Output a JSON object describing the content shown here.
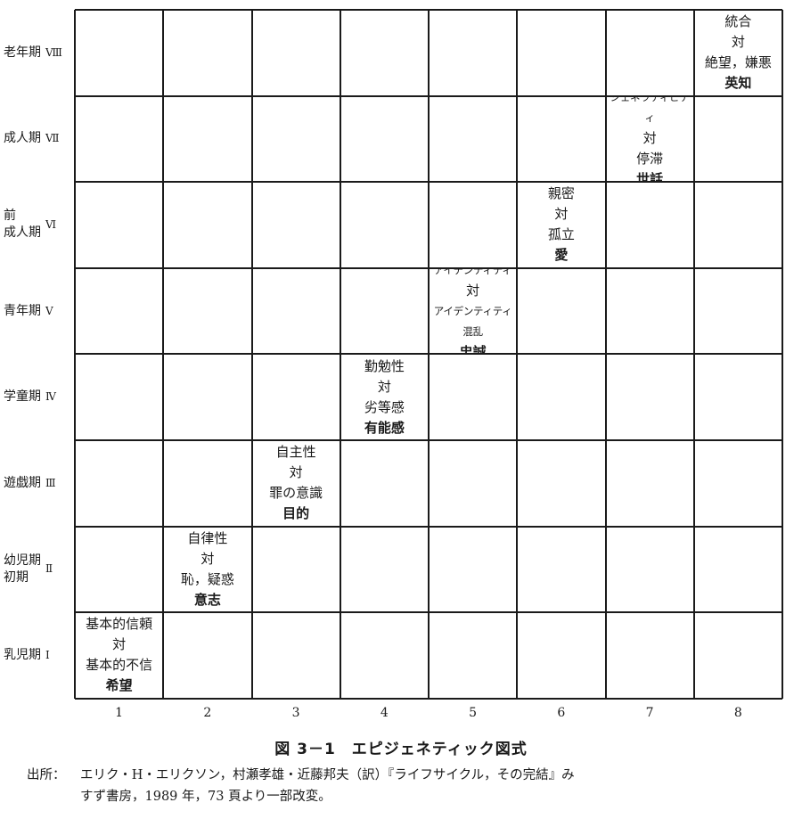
{
  "rows": [
    {
      "label": "老年期",
      "roman": "Ⅷ"
    },
    {
      "label": "成人期",
      "roman": "Ⅶ"
    },
    {
      "label": "前\n成人期",
      "roman": "Ⅵ"
    },
    {
      "label": "青年期",
      "roman": "Ⅴ"
    },
    {
      "label": "学童期",
      "roman": "Ⅳ"
    },
    {
      "label": "遊戯期",
      "roman": "Ⅲ"
    },
    {
      "label": "幼児期\n初期",
      "roman": "Ⅱ"
    },
    {
      "label": "乳児期",
      "roman": "Ⅰ"
    }
  ],
  "columns": [
    "1",
    "2",
    "3",
    "4",
    "5",
    "6",
    "7",
    "8"
  ],
  "stages": [
    {
      "row": 7,
      "col": 0,
      "positive": "基本的信頼",
      "versus": "対",
      "negative": "基本的不信",
      "virtue": "希望"
    },
    {
      "row": 6,
      "col": 1,
      "positive": "自律性",
      "versus": "対",
      "negative": "恥，疑惑",
      "virtue": "意志"
    },
    {
      "row": 5,
      "col": 2,
      "positive": "自主性",
      "versus": "対",
      "negative": "罪の意識",
      "virtue": "目的"
    },
    {
      "row": 4,
      "col": 3,
      "positive": "勤勉性",
      "versus": "対",
      "negative": "劣等感",
      "virtue": "有能感"
    },
    {
      "row": 3,
      "col": 4,
      "positive": "アイデンティティ",
      "versus": "対",
      "negative": "アイデンティティ混乱",
      "virtue": "忠誠",
      "small": true
    },
    {
      "row": 2,
      "col": 5,
      "positive": "親密",
      "versus": "対",
      "negative": "孤立",
      "virtue": "愛"
    },
    {
      "row": 1,
      "col": 6,
      "positive": "ジェネラティビティ",
      "versus": "対",
      "negative": "停滞",
      "virtue": "世話",
      "smallPositive": true
    },
    {
      "row": 0,
      "col": 7,
      "positive": "統合",
      "versus": "対",
      "negative": "絶望，嫌悪",
      "virtue": "英知"
    }
  ],
  "caption": "図 3－1　エピジェネティック図式",
  "source": {
    "label": "出所：",
    "line1": "エリク・H・エリクソン，村瀬孝雄・近藤邦夫（訳）『ライフサイクル，その完結』み",
    "line2": "すず書房，1989 年，73 頁より一部改変。"
  }
}
